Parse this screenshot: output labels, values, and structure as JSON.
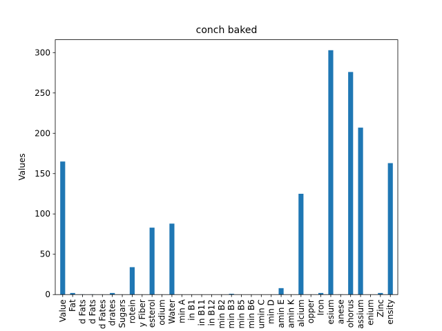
{
  "chart_data": {
    "type": "bar",
    "title": "conch baked",
    "xlabel": "",
    "ylabel": "Values",
    "ylim": [
      0,
      316
    ],
    "yticks": [
      0,
      50,
      100,
      150,
      200,
      250,
      300
    ],
    "categories": [
      "Value",
      "Fat",
      "d Fats",
      "d Fats",
      "d Fates",
      "drates",
      "Sugars",
      "rotein",
      "y Fiber",
      "esterol",
      "odium",
      "Water",
      "min A",
      "in B1",
      "in B11",
      "in B12",
      "min B2",
      "min B3",
      "min B5",
      "min B6",
      "umin C",
      "min D",
      "amin E",
      "amin K",
      "alcium",
      "opper",
      "Iron",
      "esium",
      "anese",
      "ohorus",
      "assium",
      "enium",
      "Zinc",
      "ensity"
    ],
    "values": [
      165,
      2,
      0.3,
      0.3,
      0.2,
      2,
      0.1,
      34,
      0.1,
      83,
      0.2,
      88,
      0.1,
      0.1,
      0.1,
      0.1,
      0.1,
      1,
      0.1,
      0.1,
      0.1,
      0.1,
      8,
      0.1,
      125,
      0.2,
      2,
      303,
      0.3,
      276,
      207,
      0.1,
      2,
      163
    ],
    "bar_color": "#1f77b4",
    "grid": false,
    "legend": "none"
  }
}
